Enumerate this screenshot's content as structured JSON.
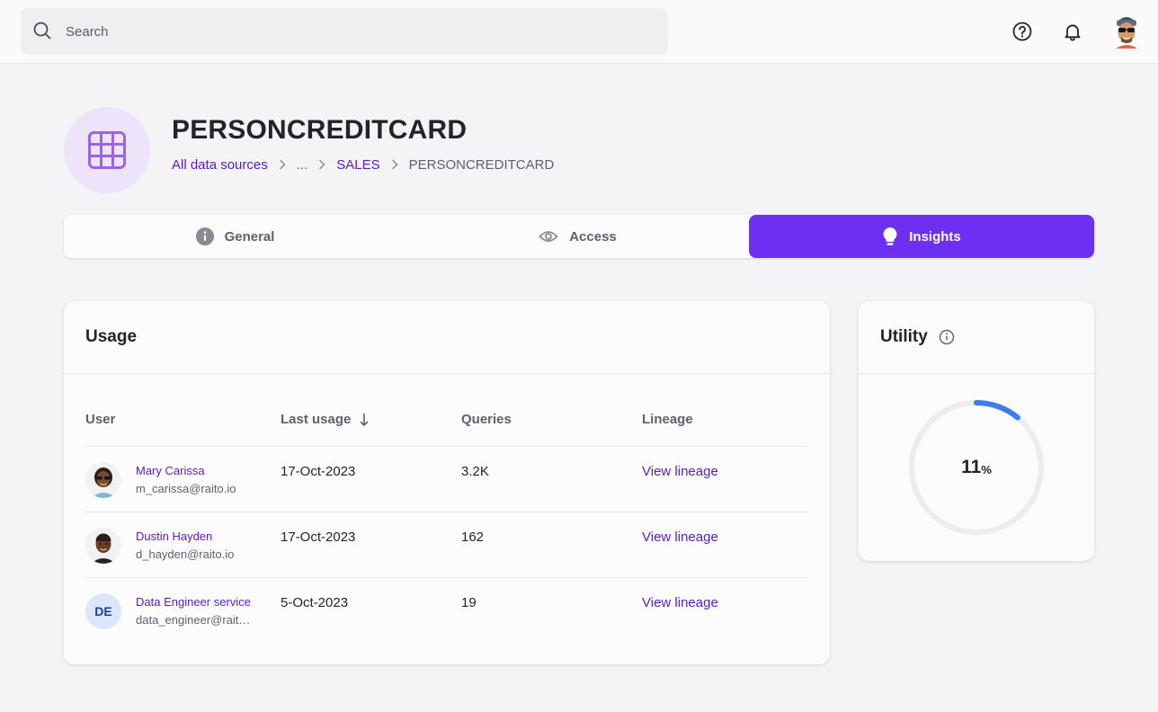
{
  "search": {
    "placeholder": "Search"
  },
  "topbar": {
    "icons": [
      "help-icon",
      "bell-icon",
      "user-avatar"
    ]
  },
  "header": {
    "title": "PERSONCREDITCARD",
    "icon": "table-grid-icon",
    "breadcrumb": {
      "root": "All data sources",
      "ellipsis": "...",
      "parent": "SALES",
      "current": "PERSONCREDITCARD"
    }
  },
  "tabs": [
    {
      "label": "General",
      "icon": "info-icon",
      "active": false
    },
    {
      "label": "Access",
      "icon": "eye-icon",
      "active": false
    },
    {
      "label": "Insights",
      "icon": "lightbulb-icon",
      "active": true
    }
  ],
  "usage": {
    "title": "Usage",
    "columns": {
      "user": "User",
      "last_usage": "Last usage",
      "queries": "Queries",
      "lineage": "Lineage"
    },
    "sort": {
      "column": "last_usage",
      "direction": "descending"
    },
    "rows": [
      {
        "name": "Mary Carissa",
        "email": "m_carissa@raito.io",
        "last_usage": "17-Oct-2023",
        "queries": "3.2K",
        "lineage": "View lineage",
        "avatar": "mary-avatar"
      },
      {
        "name": "Dustin Hayden",
        "email": "d_hayden@raito.io",
        "last_usage": "17-Oct-2023",
        "queries": "162",
        "lineage": "View lineage",
        "avatar": "dustin-avatar"
      },
      {
        "name": "Data Engineer service",
        "email": "data_engineer@raito.io",
        "last_usage": "5-Oct-2023",
        "queries": "19",
        "lineage": "View lineage",
        "avatar_initials": "DE"
      }
    ]
  },
  "utility": {
    "title": "Utility",
    "value": "11",
    "unit": "%",
    "fraction": 0.11
  },
  "colors": {
    "accent": "#6d2ff0",
    "link": "#5a1bc7",
    "gauge": "#3b7cf0",
    "gauge_track": "#ececec",
    "background": "#f4f4f6"
  }
}
